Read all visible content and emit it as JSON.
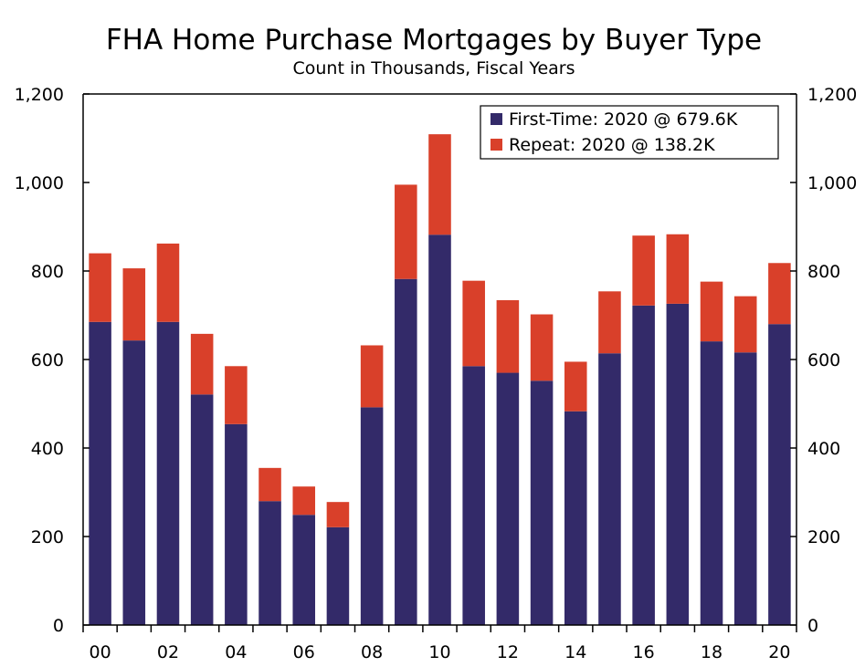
{
  "chart_data": {
    "type": "bar",
    "stacked": true,
    "title": "FHA Home Purchase Mortgages by Buyer Type",
    "subtitle": "Count in Thousands, Fiscal Years",
    "xlabel": "",
    "ylabel": "",
    "ylim": [
      0,
      1200
    ],
    "yticks": [
      0,
      200,
      400,
      600,
      800,
      1000,
      1200
    ],
    "ytick_labels": [
      "0",
      "200",
      "400",
      "600",
      "800",
      "1,000",
      "1,200"
    ],
    "categories": [
      "00",
      "01",
      "02",
      "03",
      "04",
      "05",
      "06",
      "07",
      "08",
      "09",
      "10",
      "11",
      "12",
      "13",
      "14",
      "15",
      "16",
      "17",
      "18",
      "19",
      "20"
    ],
    "xtick_labels": [
      "00",
      "",
      "02",
      "",
      "04",
      "",
      "06",
      "",
      "08",
      "",
      "10",
      "",
      "12",
      "",
      "14",
      "",
      "16",
      "",
      "18",
      "",
      "20"
    ],
    "grid": false,
    "legend_position": "top-right",
    "series": [
      {
        "name": "First-Time: 2020 @ 679.6K",
        "color": "#332a69",
        "values": [
          685,
          643,
          685,
          521,
          454,
          280,
          249,
          221,
          492,
          782,
          882,
          585,
          570,
          552,
          483,
          614,
          722,
          726,
          641,
          616,
          680
        ]
      },
      {
        "name": "Repeat: 2020 @ 138.2K",
        "color": "#d9402a",
        "values": [
          155,
          163,
          177,
          137,
          131,
          75,
          64,
          57,
          140,
          213,
          227,
          193,
          164,
          150,
          112,
          140,
          158,
          157,
          135,
          127,
          138
        ]
      }
    ]
  }
}
